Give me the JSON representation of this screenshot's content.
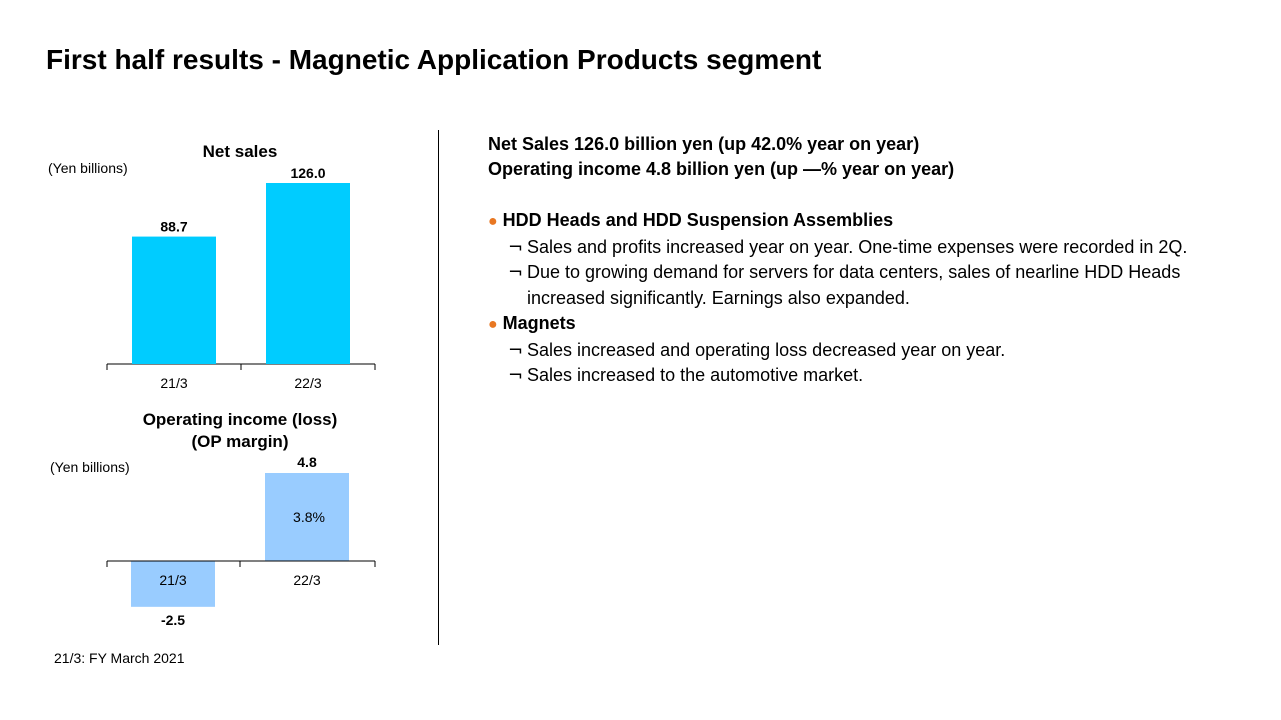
{
  "title": "First half results - Magnetic Application Products segment",
  "chart_data": [
    {
      "type": "bar",
      "title": "Net sales",
      "ylabel": "(Yen billions)",
      "categories": [
        "21/3",
        "22/3"
      ],
      "values": [
        88.7,
        126.0
      ],
      "value_labels": [
        "88.7",
        "126.0"
      ],
      "ylim": [
        0,
        126.0
      ],
      "color": "#00ccff"
    },
    {
      "type": "bar",
      "title_line1": "Operating income (loss)",
      "title_line2": "(OP margin)",
      "ylabel": "(Yen billions)",
      "categories": [
        "21/3",
        "22/3"
      ],
      "values": [
        -2.5,
        4.8
      ],
      "value_labels": [
        "-2.5",
        "4.8"
      ],
      "margin_labels": [
        "",
        "3.8%"
      ],
      "ylim": [
        -2.5,
        4.8
      ],
      "color": "#99ccff"
    }
  ],
  "footnote": "21/3: FY March 2021",
  "summary": {
    "line1": "Net Sales  126.0 billion yen (up 42.0% year on year)",
    "line2": "Operating income  4.8 billion yen (up —% year on year)"
  },
  "sections": [
    {
      "bullet": "●",
      "heading": "HDD Heads and HDD Suspension Assemblies",
      "items": [
        {
          "mark": "¬",
          "text": "Sales and profits increased year on year. One-time expenses were recorded in 2Q."
        },
        {
          "mark": "¬",
          "text": "Due to growing demand  for servers for data centers, sales of nearline HDD Heads increased significantly. Earnings also expanded."
        }
      ]
    },
    {
      "bullet": "●",
      "heading": "Magnets",
      "items": [
        {
          "mark": "¬",
          "text": "Sales increased and operating loss decreased year on year."
        },
        {
          "mark": "¬",
          "text": "Sales increased to the automotive market."
        }
      ]
    }
  ]
}
